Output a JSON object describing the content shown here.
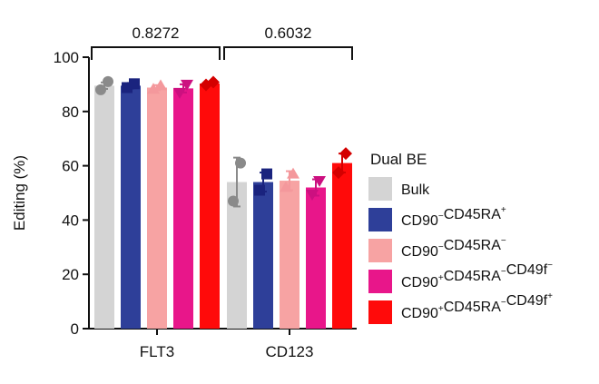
{
  "chart_data": {
    "type": "bar",
    "ylabel": "Editing (%)",
    "ylim": [
      0,
      100
    ],
    "yticks": [
      0,
      20,
      40,
      60,
      80,
      100
    ],
    "categories": [
      "FLT3",
      "CD123"
    ],
    "legend_title": "Dual BE",
    "legend_position": "right",
    "comparisons": [
      {
        "category": "FLT3",
        "label": "0.8272"
      },
      {
        "category": "CD123",
        "label": "0.6032"
      }
    ],
    "series": [
      {
        "name": "Bulk",
        "name_parts": [
          [
            "CD90",
            ""
          ]
        ],
        "label_text": "Bulk",
        "color": "#d4d4d4",
        "marker": "circle",
        "marker_color": "#8a8a8a",
        "values": [
          89.5,
          54
        ],
        "errors": [
          1.2,
          9
        ],
        "points": [
          [
            88,
            91
          ],
          [
            47,
            61
          ]
        ]
      },
      {
        "name": "CD90−CD45RA+",
        "color": "#2e3f99",
        "marker": "square",
        "marker_color": "#1a237e",
        "values": [
          89.5,
          54
        ],
        "errors": [
          1.0,
          3.5
        ],
        "points": [
          [
            88.8,
            90.2
          ],
          [
            51,
            57
          ]
        ]
      },
      {
        "name": "CD90−CD45RA−",
        "color": "#f7a3a3",
        "marker": "triangle-up",
        "marker_color": "#f4989c",
        "values": [
          88.8,
          54.5
        ],
        "errors": [
          0.9,
          3.5
        ],
        "points": [
          [
            88.2,
            89.5
          ],
          [
            52,
            57
          ]
        ]
      },
      {
        "name": "CD90+CD45RA−CD49f−",
        "color": "#e8168a",
        "marker": "triangle-down",
        "marker_color": "#cc1080",
        "values": [
          88.5,
          52
        ],
        "errors": [
          1.5,
          3
        ],
        "points": [
          [
            87,
            90
          ],
          [
            49.5,
            54.5
          ]
        ]
      },
      {
        "name": "CD90+CD45RA−CD49f+",
        "color": "#ff0a0a",
        "marker": "diamond",
        "marker_color": "#d40000",
        "values": [
          90.3,
          61
        ],
        "errors": [
          0.6,
          3.5
        ],
        "points": [
          [
            89.8,
            90.8
          ],
          [
            57.5,
            64.5
          ]
        ]
      }
    ],
    "legend_labels": [
      {
        "parts": [
          [
            "Bulk",
            ""
          ]
        ]
      },
      {
        "parts": [
          [
            "CD90",
            "−"
          ],
          [
            "CD45RA",
            "+"
          ]
        ]
      },
      {
        "parts": [
          [
            "CD90",
            "−"
          ],
          [
            "CD45RA",
            "−"
          ]
        ]
      },
      {
        "parts": [
          [
            "CD90",
            "+"
          ],
          [
            "CD45RA",
            "−"
          ],
          [
            "CD49f",
            "−"
          ]
        ]
      },
      {
        "parts": [
          [
            "CD90",
            "+"
          ],
          [
            "CD45RA",
            "−"
          ],
          [
            "CD49f",
            "+"
          ]
        ]
      }
    ],
    "grid": false
  }
}
